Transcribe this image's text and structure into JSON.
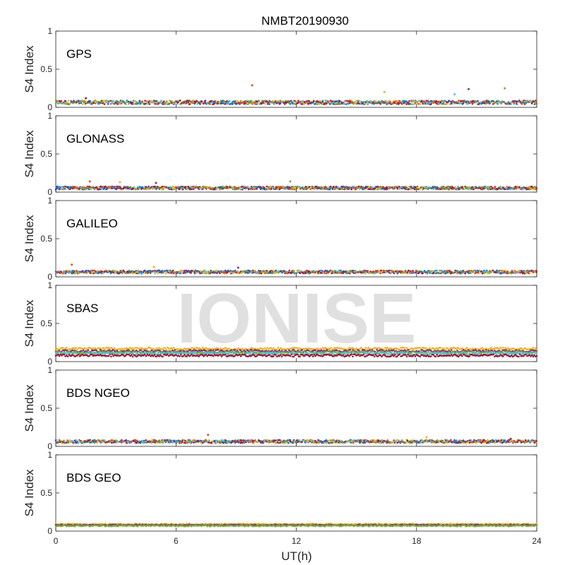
{
  "title": "NMBT20190930",
  "watermark": "IONISE",
  "colors": [
    "#0072BD",
    "#D95319",
    "#EDB120",
    "#7E2F8E",
    "#77AC30",
    "#4DBEEE",
    "#A2142F"
  ],
  "chart_data": {
    "type": "scatter",
    "xlabel": "UT(h)",
    "ylabel": "S4 Index",
    "xlim": [
      0,
      24
    ],
    "ylim": [
      0,
      1
    ],
    "x_ticks": [
      "0",
      "6",
      "12",
      "18",
      "24"
    ],
    "y_ticks": [
      "0",
      "0.5",
      "1"
    ],
    "grid": false,
    "panels": [
      {
        "name": "GPS",
        "baseline": 0.06,
        "noise": 0.025,
        "outliers": [
          [
            9.8,
            0.29
          ],
          [
            16.4,
            0.2
          ],
          [
            20.6,
            0.24
          ],
          [
            22.4,
            0.25
          ],
          [
            19.9,
            0.17
          ],
          [
            1.5,
            0.12
          ]
        ]
      },
      {
        "name": "GLONASS",
        "baseline": 0.05,
        "noise": 0.02,
        "outliers": [
          [
            1.7,
            0.14
          ],
          [
            3.2,
            0.13
          ],
          [
            5.0,
            0.12
          ],
          [
            11.7,
            0.14
          ]
        ]
      },
      {
        "name": "GALILEO",
        "baseline": 0.06,
        "noise": 0.02,
        "outliers": [
          [
            0.8,
            0.16
          ],
          [
            4.9,
            0.13
          ],
          [
            9.1,
            0.12
          ]
        ]
      },
      {
        "name": "SBAS",
        "baseline": 0.13,
        "noise": 0.015,
        "bands": [
          0.17,
          0.14,
          0.12,
          0.1,
          0.08
        ]
      },
      {
        "name": "BDS NGEO",
        "baseline": 0.06,
        "noise": 0.02,
        "outliers": [
          [
            7.6,
            0.15
          ],
          [
            18.5,
            0.12
          ],
          [
            22.7,
            0.1
          ]
        ]
      },
      {
        "name": "BDS GEO",
        "baseline": 0.08,
        "noise": 0.008,
        "bands": [
          0.09,
          0.08,
          0.07
        ]
      }
    ]
  }
}
